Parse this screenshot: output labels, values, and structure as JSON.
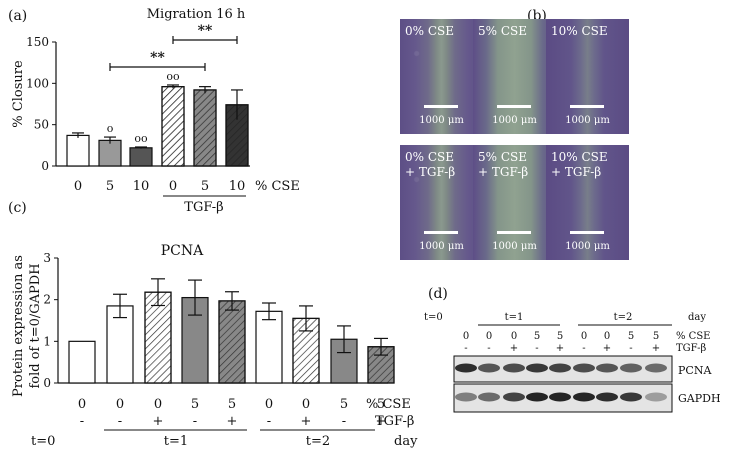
{
  "panels": {
    "a": "(a)",
    "b": "(b)",
    "c": "(c)",
    "d": "(d)"
  },
  "chart_data": [
    {
      "type": "bar",
      "title": "Migration 16 h",
      "ylabel": "% Closure",
      "ylim": [
        0,
        150
      ],
      "yticks": [
        "0",
        "50",
        "100",
        "150"
      ],
      "categories": [
        "0",
        "5",
        "10",
        "0",
        "5",
        "10"
      ],
      "category_axis_label": "% CSE",
      "group_label": "TGF-β",
      "values": [
        37,
        31,
        22,
        96,
        92,
        74
      ],
      "errors": [
        3,
        4,
        1,
        2,
        4,
        18
      ],
      "markers": [
        "",
        "o",
        "oo",
        "oo",
        "",
        ""
      ],
      "significance": [
        {
          "from": 1,
          "to": 4,
          "label": "**"
        },
        {
          "from": 3,
          "to": 5,
          "label": "**"
        }
      ],
      "fills": [
        "#ffffff",
        "#999999",
        "#555555",
        "#ffffff",
        "#888888",
        "#333333"
      ],
      "hatched": [
        false,
        false,
        false,
        true,
        true,
        true
      ]
    },
    {
      "type": "bar",
      "title": "PCNA",
      "ylabel": "Protein expression as fold of t=0/GAPDH",
      "ylim": [
        0,
        3
      ],
      "yticks": [
        "0",
        "1",
        "2",
        "3"
      ],
      "categories": [
        "0",
        "0",
        "0",
        "5",
        "5",
        "0",
        "0",
        "5",
        "5"
      ],
      "tgf": [
        "-",
        "-",
        "+",
        "-",
        "+",
        "-",
        "+",
        "-",
        "+"
      ],
      "row_labels": {
        "cse": "% CSE",
        "tgf": "TGF-β",
        "day": "day"
      },
      "time_labels": [
        "t=0",
        "t=1",
        "t=2"
      ],
      "values": [
        1.0,
        1.85,
        2.18,
        2.05,
        1.97,
        1.72,
        1.55,
        1.05,
        0.87
      ],
      "errors": [
        0,
        0.28,
        0.32,
        0.42,
        0.22,
        0.2,
        0.3,
        0.32,
        0.2
      ],
      "fills": [
        "#ffffff",
        "#ffffff",
        "#ffffff",
        "#888888",
        "#888888",
        "#ffffff",
        "#ffffff",
        "#888888",
        "#888888"
      ],
      "hatched": [
        false,
        false,
        true,
        false,
        true,
        false,
        true,
        false,
        true
      ]
    }
  ],
  "micrographs": {
    "tiles": [
      {
        "label": "0% CSE",
        "scale": "1000 μm"
      },
      {
        "label": "5% CSE",
        "scale": "1000 μm"
      },
      {
        "label": "10% CSE",
        "scale": "1000 μm"
      },
      {
        "label": "0% CSE\n+ TGF-β",
        "scale": "1000 μm"
      },
      {
        "label": "5% CSE\n+ TGF-β",
        "scale": "1000 μm"
      },
      {
        "label": "10% CSE\n+ TGF-β",
        "scale": "1000 μm"
      }
    ]
  },
  "blot": {
    "t0": "t=0",
    "t1": "t=1",
    "t2": "t=2",
    "day": "day",
    "cse_label": "% CSE",
    "tgf_label": "TGF-β",
    "cse": [
      "0",
      "0",
      "0",
      "5",
      "5",
      "0",
      "0",
      "5",
      "5"
    ],
    "tgf": [
      "-",
      "-",
      "+",
      "-",
      "+",
      "-",
      "+",
      "-",
      "+"
    ],
    "bands": [
      "PCNA",
      "GAPDH"
    ]
  }
}
